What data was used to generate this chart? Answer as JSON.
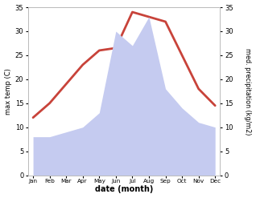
{
  "months": [
    "Jan",
    "Feb",
    "Mar",
    "Apr",
    "May",
    "Jun",
    "Jul",
    "Aug",
    "Sep",
    "Oct",
    "Nov",
    "Dec"
  ],
  "max_temp": [
    12,
    15,
    19,
    23,
    26,
    26.5,
    34,
    33,
    32,
    25,
    18,
    14.5
  ],
  "precipitation": [
    8,
    8,
    9,
    10,
    13,
    30,
    27,
    33,
    18,
    14,
    11,
    10
  ],
  "temp_color": "#c8433a",
  "precip_fill_color": "#c5cbf0",
  "background_color": "#ffffff",
  "ylabel_left": "max temp (C)",
  "ylabel_right": "med. precipitation (kg/m2)",
  "xlabel": "date (month)",
  "ylim_left": [
    0,
    35
  ],
  "ylim_right": [
    0,
    35
  ],
  "yticks_left": [
    0,
    5,
    10,
    15,
    20,
    25,
    30,
    35
  ],
  "yticks_right": [
    0,
    5,
    10,
    15,
    20,
    25,
    30,
    35
  ]
}
